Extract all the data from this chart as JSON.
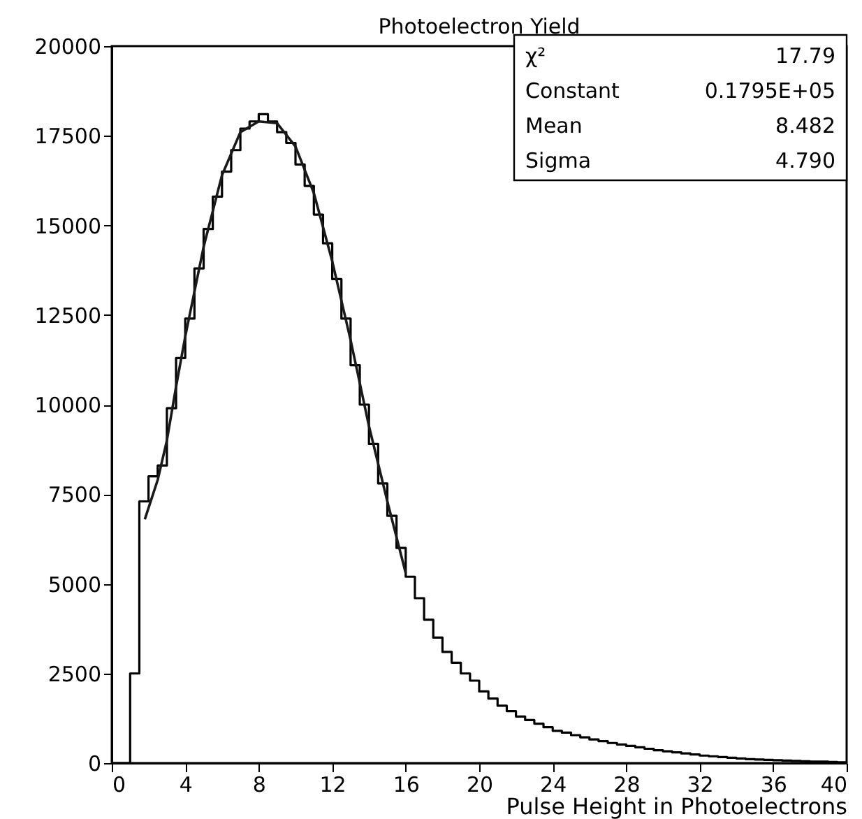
{
  "chart_data": {
    "type": "histogram",
    "title": "Photoelectron Yield",
    "xlabel": "Pulse Height in Photoelectrons",
    "bins": [
      0,
      0.5,
      1,
      1.5,
      2,
      2.5,
      3,
      3.5,
      4,
      4.5,
      5,
      5.5,
      6,
      6.5,
      7,
      7.5,
      8,
      8.5,
      9,
      9.5,
      10,
      10.5,
      11,
      11.5,
      12,
      12.5,
      13,
      13.5,
      14,
      14.5,
      15,
      15.5,
      16,
      16.5,
      17,
      17.5,
      18,
      18.5,
      19,
      19.5,
      20,
      20.5,
      21,
      21.5,
      22,
      22.5,
      23,
      23.5,
      24,
      24.5,
      25,
      25.5,
      26,
      26.5,
      27,
      27.5,
      28,
      28.5,
      29,
      29.5,
      30,
      30.5,
      31,
      31.5,
      32,
      32.5,
      33,
      33.5,
      34,
      34.5,
      35,
      35.5,
      36,
      36.5,
      37,
      37.5,
      38,
      38.5,
      39,
      39.5,
      40
    ],
    "values": [
      0,
      0,
      2500,
      7300,
      8000,
      8300,
      9900,
      11300,
      12400,
      13800,
      14900,
      15800,
      16500,
      17100,
      17700,
      17900,
      18100,
      17900,
      17600,
      17300,
      16700,
      16100,
      15300,
      14500,
      13500,
      12400,
      11100,
      10000,
      8900,
      7800,
      6900,
      6000,
      5200,
      4600,
      4000,
      3500,
      3100,
      2800,
      2500,
      2300,
      2000,
      1800,
      1600,
      1450,
      1300,
      1200,
      1100,
      1000,
      900,
      850,
      780,
      720,
      660,
      610,
      560,
      520,
      480,
      440,
      400,
      360,
      330,
      300,
      270,
      240,
      210,
      190,
      170,
      150,
      130,
      110,
      100,
      90,
      80,
      70,
      60,
      50,
      40,
      40,
      30,
      20
    ],
    "color": "#000000",
    "series": [
      {
        "type": "line",
        "color": "#1a1a1a",
        "x": [
          1.8,
          2.5,
          3,
          3.5,
          4,
          5,
          6,
          7,
          8,
          9,
          10,
          11,
          12,
          13,
          14,
          15,
          16
        ],
        "values": [
          6800,
          7900,
          9000,
          10500,
          11900,
          14400,
          16400,
          17600,
          17900,
          17850,
          17200,
          15900,
          14000,
          11800,
          9400,
          7300,
          5300
        ]
      }
    ],
    "xlim": [
      0,
      40
    ],
    "xticks": [
      0,
      4,
      8,
      12,
      16,
      20,
      24,
      28,
      32,
      36,
      40
    ],
    "ylim": [
      0,
      20000
    ],
    "yticks": [
      0,
      2500,
      5000,
      7500,
      10000,
      12500,
      15000,
      17500,
      20000
    ],
    "grid": false,
    "annotations": [
      "χ²",
      "17.79",
      "Constant",
      "0.1795E+05",
      "Mean",
      "8.482",
      "Sigma",
      "4.790"
    ]
  }
}
